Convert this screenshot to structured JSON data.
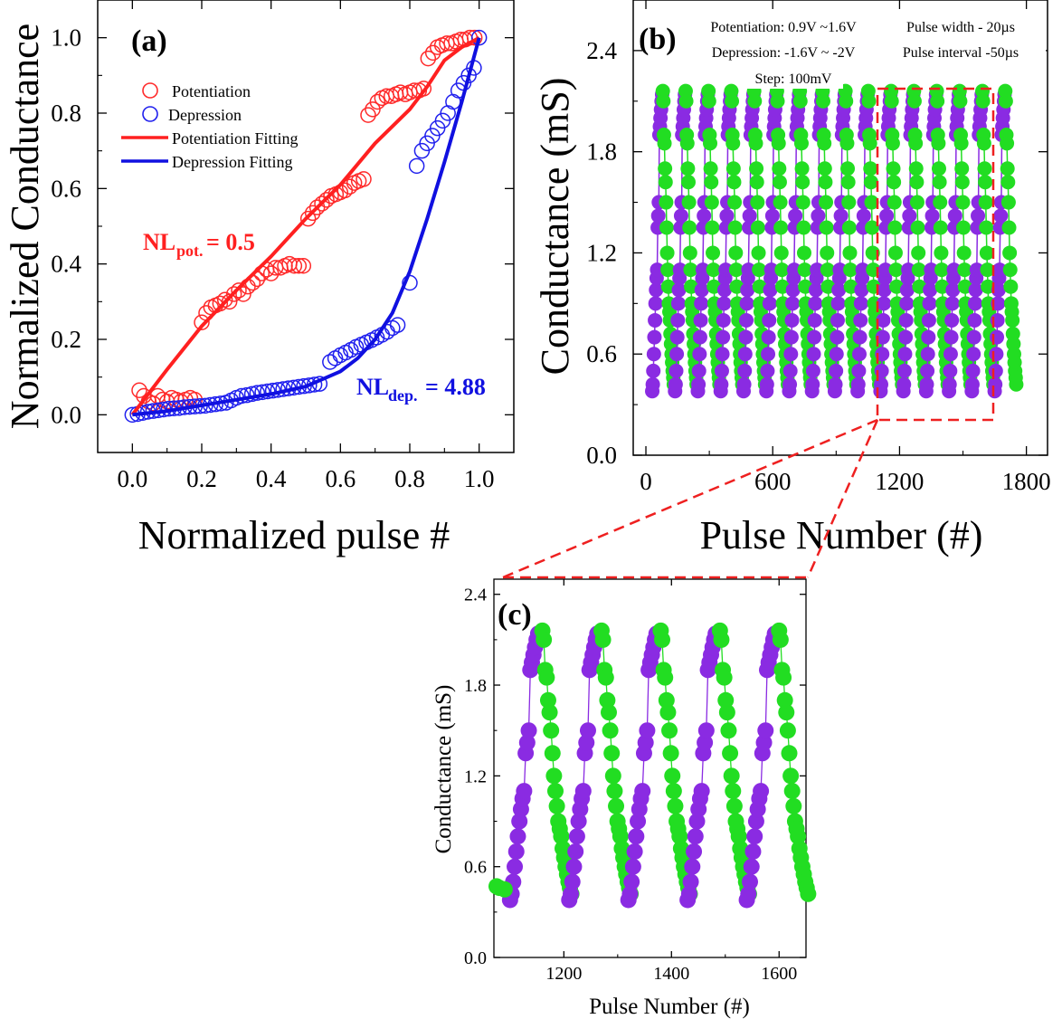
{
  "chart_data": [
    {
      "panel": "(a)",
      "type": "scatter",
      "xlabel": "Normalized pulse #",
      "ylabel": "Normalized Conductance",
      "xlim": [
        -0.1,
        1.1
      ],
      "ylim": [
        -0.1,
        1.1
      ],
      "xticks": [
        "0.0",
        "0.2",
        "0.4",
        "0.6",
        "0.8",
        "1.0"
      ],
      "yticks": [
        "0.0",
        "0.2",
        "0.4",
        "0.6",
        "0.8",
        "1.0"
      ],
      "legend": [
        {
          "label": "Potentiation",
          "kind": "marker",
          "color": "#ff2a2a"
        },
        {
          "label": "Depression",
          "kind": "marker",
          "color": "#2020ee"
        },
        {
          "label": "Potentiation Fitting",
          "kind": "line",
          "color": "#ff2020"
        },
        {
          "label": "Depression Fitting",
          "kind": "line",
          "color": "#1010e0"
        }
      ],
      "annotations": {
        "pot_prefix": "NL",
        "pot_sub": "pot.",
        "pot_value": "= 0.5",
        "dep_prefix": "NL",
        "dep_sub": "dep.",
        "dep_value": "= 4.88"
      },
      "series": [
        {
          "name": "Potentiation",
          "color": "#ff2a2a",
          "points": [
            [
              0.02,
              0.065
            ],
            [
              0.033,
              0.05
            ],
            [
              0.047,
              0.035
            ],
            [
              0.06,
              0.03
            ],
            [
              0.073,
              0.05
            ],
            [
              0.087,
              0.04
            ],
            [
              0.1,
              0.035
            ],
            [
              0.113,
              0.045
            ],
            [
              0.127,
              0.04
            ],
            [
              0.14,
              0.035
            ],
            [
              0.153,
              0.04
            ],
            [
              0.167,
              0.045
            ],
            [
              0.18,
              0.04
            ],
            [
              0.2,
              0.245
            ],
            [
              0.213,
              0.27
            ],
            [
              0.227,
              0.285
            ],
            [
              0.24,
              0.29
            ],
            [
              0.253,
              0.295
            ],
            [
              0.267,
              0.305
            ],
            [
              0.28,
              0.3
            ],
            [
              0.293,
              0.32
            ],
            [
              0.307,
              0.33
            ],
            [
              0.32,
              0.32
            ],
            [
              0.333,
              0.34
            ],
            [
              0.347,
              0.35
            ],
            [
              0.36,
              0.36
            ],
            [
              0.373,
              0.375
            ],
            [
              0.387,
              0.385
            ],
            [
              0.4,
              0.375
            ],
            [
              0.413,
              0.39
            ],
            [
              0.427,
              0.39
            ],
            [
              0.44,
              0.395
            ],
            [
              0.453,
              0.4
            ],
            [
              0.467,
              0.395
            ],
            [
              0.48,
              0.395
            ],
            [
              0.493,
              0.395
            ],
            [
              0.507,
              0.52
            ],
            [
              0.52,
              0.535
            ],
            [
              0.533,
              0.55
            ],
            [
              0.547,
              0.56
            ],
            [
              0.56,
              0.57
            ],
            [
              0.573,
              0.58
            ],
            [
              0.587,
              0.585
            ],
            [
              0.6,
              0.59
            ],
            [
              0.613,
              0.595
            ],
            [
              0.627,
              0.605
            ],
            [
              0.64,
              0.615
            ],
            [
              0.653,
              0.62
            ],
            [
              0.667,
              0.625
            ],
            [
              0.68,
              0.795
            ],
            [
              0.693,
              0.81
            ],
            [
              0.707,
              0.83
            ],
            [
              0.72,
              0.84
            ],
            [
              0.733,
              0.845
            ],
            [
              0.747,
              0.845
            ],
            [
              0.76,
              0.85
            ],
            [
              0.773,
              0.855
            ],
            [
              0.787,
              0.85
            ],
            [
              0.8,
              0.855
            ],
            [
              0.813,
              0.86
            ],
            [
              0.827,
              0.86
            ],
            [
              0.84,
              0.865
            ],
            [
              0.853,
              0.945
            ],
            [
              0.867,
              0.96
            ],
            [
              0.88,
              0.975
            ],
            [
              0.893,
              0.98
            ],
            [
              0.907,
              0.985
            ],
            [
              0.92,
              0.985
            ],
            [
              0.933,
              0.99
            ],
            [
              0.947,
              0.995
            ],
            [
              0.96,
              0.995
            ],
            [
              0.973,
              1.0
            ],
            [
              0.987,
              1.0
            ]
          ]
        },
        {
          "name": "Depression",
          "color": "#2020ee",
          "points": [
            [
              0.0,
              0.0
            ],
            [
              0.015,
              0.002
            ],
            [
              0.03,
              0.005
            ],
            [
              0.045,
              0.008
            ],
            [
              0.06,
              0.01
            ],
            [
              0.075,
              0.012
            ],
            [
              0.09,
              0.014
            ],
            [
              0.105,
              0.016
            ],
            [
              0.12,
              0.017
            ],
            [
              0.135,
              0.018
            ],
            [
              0.15,
              0.02
            ],
            [
              0.165,
              0.021
            ],
            [
              0.18,
              0.022
            ],
            [
              0.195,
              0.023
            ],
            [
              0.21,
              0.024
            ],
            [
              0.225,
              0.026
            ],
            [
              0.24,
              0.028
            ],
            [
              0.255,
              0.03
            ],
            [
              0.27,
              0.032
            ],
            [
              0.285,
              0.038
            ],
            [
              0.3,
              0.045
            ],
            [
              0.315,
              0.05
            ],
            [
              0.33,
              0.052
            ],
            [
              0.345,
              0.055
            ],
            [
              0.36,
              0.058
            ],
            [
              0.375,
              0.06
            ],
            [
              0.39,
              0.062
            ],
            [
              0.405,
              0.064
            ],
            [
              0.42,
              0.066
            ],
            [
              0.435,
              0.068
            ],
            [
              0.45,
              0.07
            ],
            [
              0.465,
              0.072
            ],
            [
              0.48,
              0.074
            ],
            [
              0.495,
              0.076
            ],
            [
              0.51,
              0.078
            ],
            [
              0.525,
              0.08
            ],
            [
              0.54,
              0.082
            ],
            [
              0.57,
              0.14
            ],
            [
              0.585,
              0.15
            ],
            [
              0.6,
              0.158
            ],
            [
              0.615,
              0.165
            ],
            [
              0.63,
              0.172
            ],
            [
              0.645,
              0.18
            ],
            [
              0.66,
              0.186
            ],
            [
              0.675,
              0.192
            ],
            [
              0.69,
              0.198
            ],
            [
              0.705,
              0.205
            ],
            [
              0.72,
              0.212
            ],
            [
              0.735,
              0.22
            ],
            [
              0.75,
              0.23
            ],
            [
              0.765,
              0.238
            ],
            [
              0.8,
              0.35
            ],
            [
              0.82,
              0.66
            ],
            [
              0.835,
              0.7
            ],
            [
              0.85,
              0.72
            ],
            [
              0.865,
              0.74
            ],
            [
              0.88,
              0.76
            ],
            [
              0.895,
              0.78
            ],
            [
              0.91,
              0.8
            ],
            [
              0.925,
              0.83
            ],
            [
              0.94,
              0.86
            ],
            [
              0.955,
              0.88
            ],
            [
              0.97,
              0.9
            ],
            [
              0.985,
              0.92
            ],
            [
              1.0,
              1.0
            ]
          ]
        },
        {
          "name": "Potentiation Fitting",
          "color": "#ff2020",
          "line": true,
          "points": [
            [
              0.0,
              0.0
            ],
            [
              0.1,
              0.12
            ],
            [
              0.2,
              0.235
            ],
            [
              0.3,
              0.33
            ],
            [
              0.4,
              0.42
            ],
            [
              0.5,
              0.52
            ],
            [
              0.6,
              0.61
            ],
            [
              0.7,
              0.72
            ],
            [
              0.8,
              0.81
            ],
            [
              0.85,
              0.87
            ],
            [
              0.9,
              0.94
            ],
            [
              0.95,
              0.975
            ],
            [
              1.0,
              1.0
            ]
          ]
        },
        {
          "name": "Depression Fitting",
          "color": "#1010e0",
          "line": true,
          "points": [
            [
              0.0,
              0.0
            ],
            [
              0.1,
              0.01
            ],
            [
              0.2,
              0.025
            ],
            [
              0.3,
              0.04
            ],
            [
              0.4,
              0.055
            ],
            [
              0.5,
              0.075
            ],
            [
              0.6,
              0.115
            ],
            [
              0.65,
              0.15
            ],
            [
              0.7,
              0.2
            ],
            [
              0.75,
              0.27
            ],
            [
              0.8,
              0.38
            ],
            [
              0.85,
              0.52
            ],
            [
              0.9,
              0.67
            ],
            [
              0.95,
              0.83
            ],
            [
              1.0,
              1.0
            ]
          ]
        }
      ]
    },
    {
      "panel": "(b)",
      "type": "line",
      "xlabel": "Pulse Number (#)",
      "ylabel": "Conductance (mS)",
      "xlim": [
        -60,
        1900
      ],
      "ylim": [
        0.0,
        2.7
      ],
      "xticks": [
        "0",
        "600",
        "1200",
        "1800"
      ],
      "yticks": [
        "0.0",
        "0.6",
        "1.2",
        "1.8",
        "2.4"
      ],
      "cycles": 16,
      "cycle_length": 108,
      "annotations": {
        "line1": "Potentiation: 0.9V ~1.6V",
        "line2": "Depression: -1.6V ~ -2V",
        "line3": "Step: 100mV",
        "line4": "Pulse width - 20µs",
        "line5": "Pulse interval -50µs"
      },
      "zoom_box_x": [
        1050,
        1620
      ],
      "zoom_box_y": [
        0.3,
        2.2
      ],
      "series": [
        {
          "name": "Potentiation",
          "color": "#8a2be2"
        },
        {
          "name": "Depression",
          "color": "#22dd22"
        }
      ]
    },
    {
      "panel": "(c)",
      "type": "line",
      "xlabel": "Pulse Number (#)",
      "ylabel": "Conductance (mS)",
      "xlim": [
        1070,
        1650
      ],
      "ylim": [
        0.0,
        2.5
      ],
      "xticks": [
        "1200",
        "1400",
        "1600"
      ],
      "yticks": [
        "0.0",
        "0.6",
        "1.2",
        "1.8",
        "2.4"
      ],
      "series": [
        {
          "name": "Potentiation",
          "color": "#8a2be2"
        },
        {
          "name": "Depression",
          "color": "#22dd22"
        }
      ]
    }
  ]
}
